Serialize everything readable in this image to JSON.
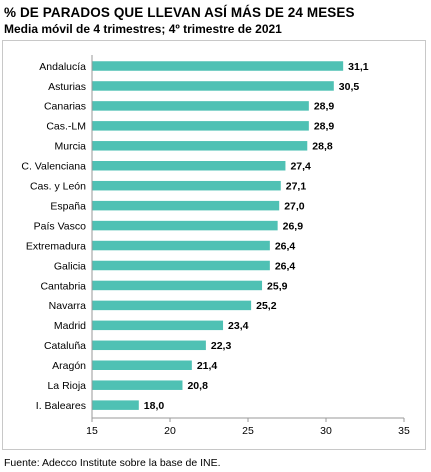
{
  "header": {
    "title": "% DE PARADOS QUE LLEVAN ASÍ MÁS DE 24 MESES",
    "subtitle": "Media móvil de 4 trimestres; 4º trimestre de 2021"
  },
  "footer": {
    "source": "Fuente: Adecco Institute sobre la base de INE."
  },
  "colors": {
    "bar": "#4fc1b4",
    "axis": "#9a9a9a"
  },
  "chart_data": {
    "type": "bar",
    "orientation": "horizontal",
    "categories": [
      "Andalucía",
      "Asturias",
      "Canarias",
      "Cas.-LM",
      "Murcia",
      "C. Valenciana",
      "Cas. y León",
      "España",
      "País Vasco",
      "Extremadura",
      "Galicia",
      "Cantabria",
      "Navarra",
      "Madrid",
      "Cataluña",
      "Aragón",
      "La Rioja",
      "I. Baleares"
    ],
    "values": [
      31.1,
      30.5,
      28.9,
      28.9,
      28.8,
      27.4,
      27.1,
      27.0,
      26.9,
      26.4,
      26.4,
      25.9,
      25.2,
      23.4,
      22.3,
      21.4,
      20.8,
      18.0
    ],
    "value_labels": [
      "31,1",
      "30,5",
      "28,9",
      "28,9",
      "28,8",
      "27,4",
      "27,1",
      "27,0",
      "26,9",
      "26,4",
      "26,4",
      "25,9",
      "25,2",
      "23,4",
      "22,3",
      "21,4",
      "20,8",
      "18,0"
    ],
    "xlim": [
      15,
      35
    ],
    "xticks": [
      15,
      20,
      25,
      30,
      35
    ],
    "grid": false,
    "legend": "none"
  }
}
